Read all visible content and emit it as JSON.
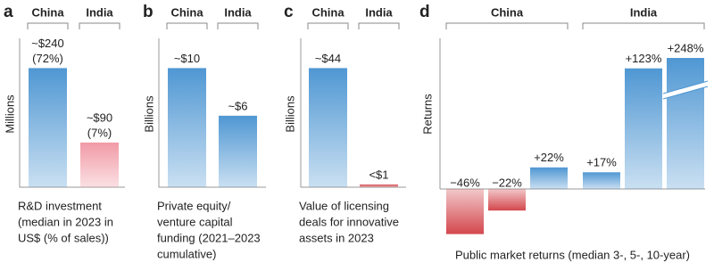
{
  "chart_data": [
    {
      "type": "bar",
      "panel": "a",
      "categories": [
        "China",
        "India"
      ],
      "values": [
        240,
        90
      ],
      "value_labels": [
        "~$240",
        "~$90"
      ],
      "share_labels": [
        "(72%)",
        "(7%)"
      ],
      "colors": [
        "#4f97d3",
        "#f19aa6"
      ],
      "ylabel": "Millions",
      "caption": [
        "R&D investment",
        "(median in 2023 in",
        "US$ (% of sales))"
      ],
      "ylim": [
        0,
        300
      ]
    },
    {
      "type": "bar",
      "panel": "b",
      "categories": [
        "China",
        "India"
      ],
      "values": [
        10,
        6
      ],
      "value_labels": [
        "~$10",
        "~$6"
      ],
      "colors": [
        "#4f97d3",
        "#4f97d3"
      ],
      "ylabel": "Billions",
      "caption": [
        "Private equity/",
        "venture capital",
        "funding (2021–2023",
        "cumulative)"
      ],
      "ylim": [
        0,
        12.5
      ]
    },
    {
      "type": "bar",
      "panel": "c",
      "categories": [
        "China",
        "India"
      ],
      "values": [
        44,
        1
      ],
      "value_labels": [
        "~$44",
        "<$1"
      ],
      "colors": [
        "#4f97d3",
        "#d3474d"
      ],
      "ylabel": "Billions",
      "caption": [
        "Value of licensing",
        "deals for innovative",
        "assets in 2023"
      ],
      "ylim": [
        0,
        55
      ]
    },
    {
      "type": "grouped",
      "panel": "d",
      "series": [
        {
          "name": "China",
          "values": [
            -46,
            -22,
            22
          ],
          "value_labels": [
            "−46%",
            "−22%",
            "+22%"
          ]
        },
        {
          "name": "India",
          "values": [
            17,
            123,
            248
          ],
          "value_labels": [
            "+17%",
            "+123%",
            "+248%"
          ]
        }
      ],
      "positive_color": "#4f97d3",
      "negative_color": "#d3474d",
      "ylabel": "Returns",
      "caption": "Public market returns (median 3-, 5-, 10-year)",
      "ylim": [
        -55,
        155
      ],
      "broken_axis": true
    }
  ]
}
